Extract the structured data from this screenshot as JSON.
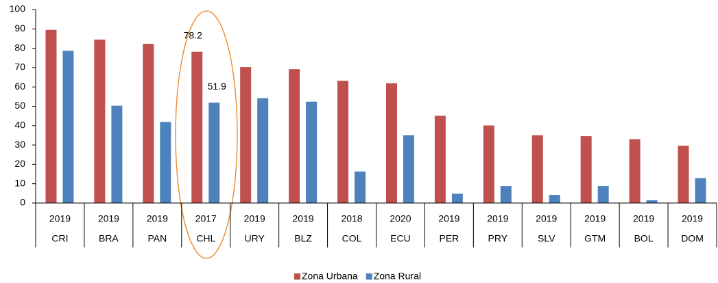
{
  "chart_data": {
    "type": "bar",
    "categories": [
      "CRI",
      "BRA",
      "PAN",
      "CHL",
      "URY",
      "BLZ",
      "COL",
      "ECU",
      "PER",
      "PRY",
      "SLV",
      "GTM",
      "BOL",
      "DOM"
    ],
    "years": [
      2019,
      2019,
      2019,
      2017,
      2019,
      2019,
      2018,
      2020,
      2019,
      2019,
      2019,
      2019,
      2019,
      2019
    ],
    "series": [
      {
        "name": "Zona Urbana",
        "color": "#c0504d",
        "values": [
          89.5,
          84.5,
          82.3,
          78.2,
          70.3,
          69.2,
          63.2,
          61.9,
          45.1,
          40.1,
          35.0,
          34.6,
          33.0,
          29.6
        ],
        "value_labels": [
          null,
          null,
          null,
          "78.2",
          null,
          null,
          null,
          null,
          null,
          null,
          null,
          null,
          null,
          null
        ]
      },
      {
        "name": "Zona Rural",
        "color": "#4f81bd",
        "values": [
          78.7,
          50.3,
          41.9,
          51.9,
          54.2,
          52.4,
          16.3,
          35.0,
          4.8,
          8.8,
          4.2,
          8.8,
          1.4,
          12.9
        ],
        "value_labels": [
          null,
          null,
          null,
          "51.9",
          null,
          null,
          null,
          null,
          null,
          null,
          null,
          null,
          null,
          null
        ]
      }
    ],
    "ylim": [
      0,
      100
    ],
    "yticks": [
      0,
      10,
      20,
      30,
      40,
      50,
      60,
      70,
      80,
      90,
      100
    ],
    "grid": false,
    "legend": "bottom"
  }
}
